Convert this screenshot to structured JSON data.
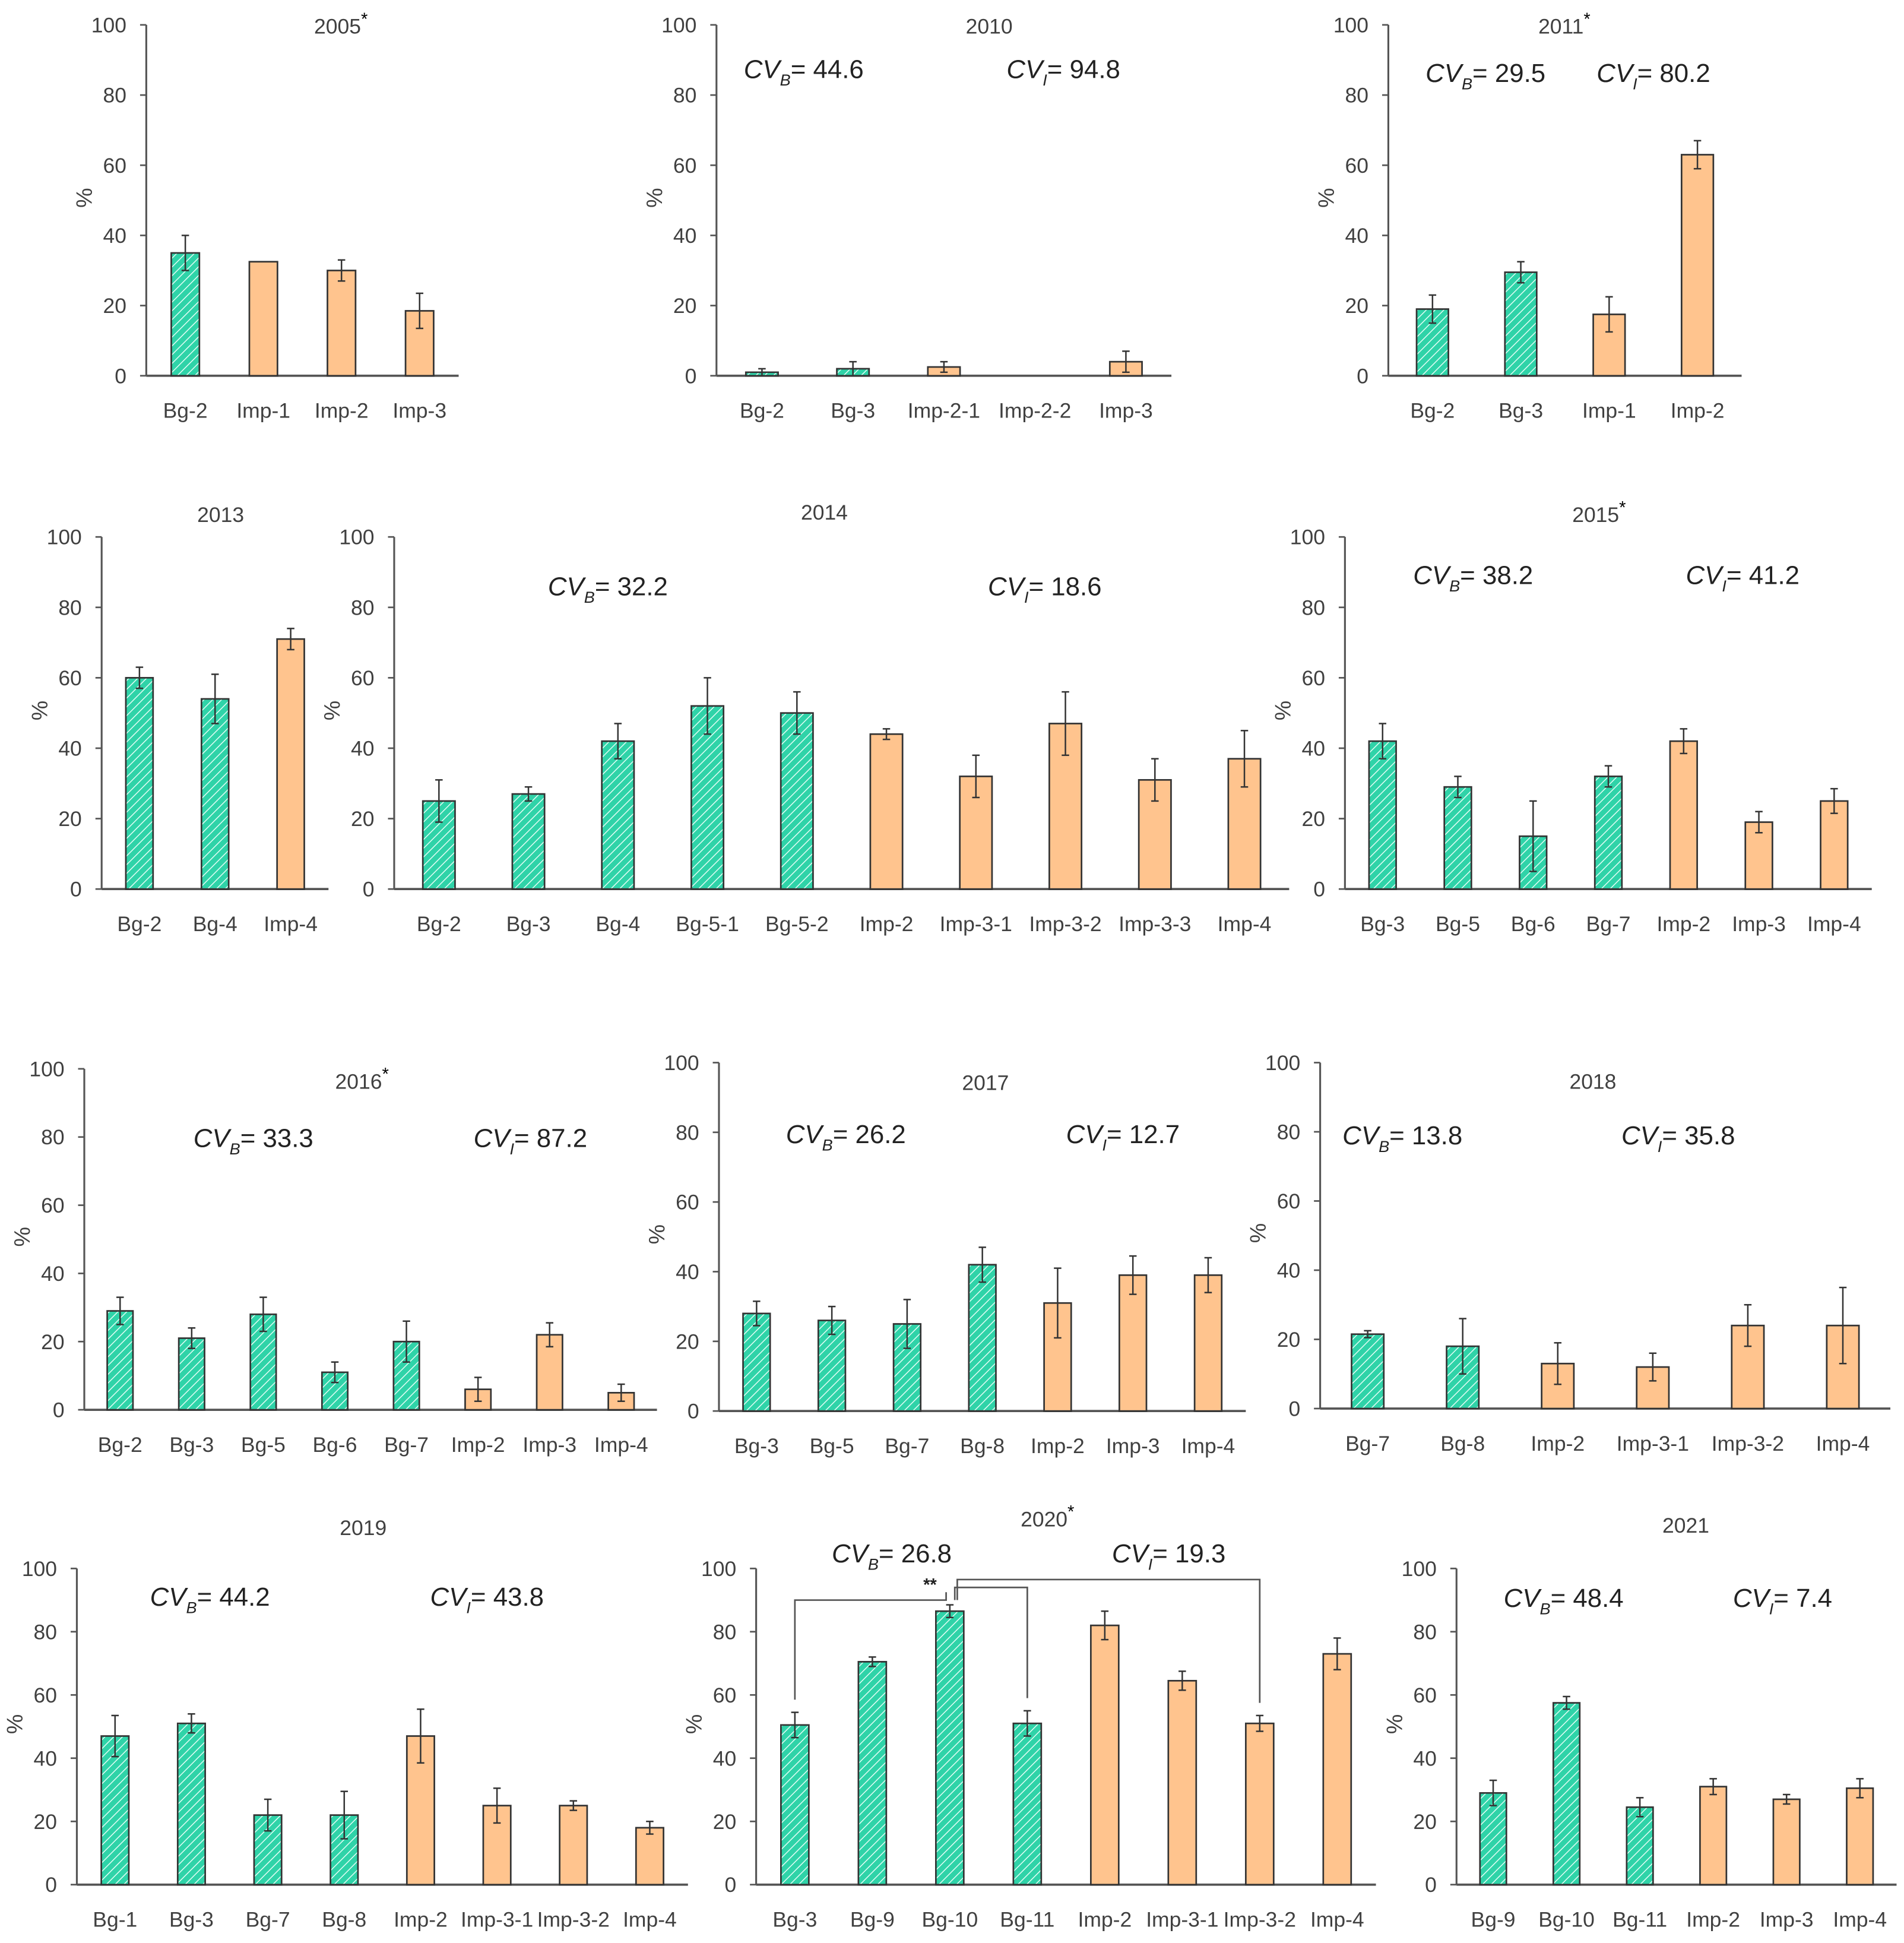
{
  "common": {
    "ylabel": "%",
    "yticks": [
      0,
      20,
      40,
      60,
      80,
      100
    ],
    "cv_label": "CV",
    "sub_b": "B",
    "sub_i": "I",
    "star": "*",
    "sig_label": "**",
    "colors": {
      "background_group": "#2fd3a8",
      "introduced_group": "#ffc48e",
      "outline": "#333333"
    }
  },
  "chart_data": [
    {
      "type": "bar",
      "title": "2005",
      "star": true,
      "ylim": [
        0,
        100
      ],
      "cv_b": null,
      "cv_i": null,
      "categories": [
        "Bg-2",
        "Imp-1",
        "Imp-2",
        "Imp-3"
      ],
      "values": [
        35,
        32.5,
        30,
        18.5
      ],
      "errors": [
        5,
        0,
        3,
        5
      ],
      "groups": [
        "B",
        "I",
        "I",
        "I"
      ]
    },
    {
      "type": "bar",
      "title": "2010",
      "star": false,
      "ylim": [
        0,
        100
      ],
      "cv_b": "= 44.6",
      "cv_i": "= 94.8",
      "categories": [
        "Bg-2",
        "Bg-3",
        "Imp-2-1",
        "Imp-2-2",
        "Imp-3"
      ],
      "values": [
        1,
        2,
        2.5,
        0,
        4
      ],
      "errors": [
        1,
        2,
        1.5,
        0,
        3
      ],
      "groups": [
        "B",
        "B",
        "I",
        "I",
        "I"
      ]
    },
    {
      "type": "bar",
      "title": "2011",
      "star": true,
      "ylim": [
        0,
        100
      ],
      "cv_b": "= 29.5",
      "cv_i": "= 80.2",
      "categories": [
        "Bg-2",
        "Bg-3",
        "Imp-1",
        "Imp-2"
      ],
      "values": [
        19,
        29.5,
        17.5,
        63
      ],
      "errors": [
        4,
        3,
        5,
        4
      ],
      "groups": [
        "B",
        "B",
        "I",
        "I"
      ]
    },
    {
      "type": "bar",
      "title": "2013",
      "star": false,
      "ylim": [
        0,
        100
      ],
      "cv_b": null,
      "cv_i": null,
      "categories": [
        "Bg-2",
        "Bg-4",
        "Imp-4"
      ],
      "values": [
        60,
        54,
        71
      ],
      "errors": [
        3,
        7,
        3
      ],
      "groups": [
        "B",
        "B",
        "I"
      ]
    },
    {
      "type": "bar",
      "title": "2014",
      "star": false,
      "ylim": [
        0,
        100
      ],
      "cv_b": "= 32.2",
      "cv_i": "= 18.6",
      "categories": [
        "Bg-2",
        "Bg-3",
        "Bg-4",
        "Bg-5-1",
        "Bg-5-2",
        "Imp-2",
        "Imp-3-1",
        "Imp-3-2",
        "Imp-3-3",
        "Imp-4"
      ],
      "values": [
        25,
        27,
        42,
        52,
        50,
        44,
        32,
        47,
        31,
        37
      ],
      "errors": [
        6,
        2,
        5,
        8,
        6,
        1.5,
        6,
        9,
        6,
        8
      ],
      "groups": [
        "B",
        "B",
        "B",
        "B",
        "B",
        "I",
        "I",
        "I",
        "I",
        "I"
      ]
    },
    {
      "type": "bar",
      "title": "2015",
      "star": true,
      "ylim": [
        0,
        100
      ],
      "cv_b": "= 38.2",
      "cv_i": "= 41.2",
      "categories": [
        "Bg-3",
        "Bg-5",
        "Bg-6",
        "Bg-7",
        "Imp-2",
        "Imp-3",
        "Imp-4"
      ],
      "values": [
        42,
        29,
        15,
        32,
        42,
        19,
        25
      ],
      "errors": [
        5,
        3,
        10,
        3,
        3.5,
        3,
        3.5
      ],
      "groups": [
        "B",
        "B",
        "B",
        "B",
        "I",
        "I",
        "I"
      ]
    },
    {
      "type": "bar",
      "title": "2016",
      "star": true,
      "ylim": [
        0,
        100
      ],
      "cv_b": "= 33.3",
      "cv_i": "= 87.2",
      "categories": [
        "Bg-2",
        "Bg-3",
        "Bg-5",
        "Bg-6",
        "Bg-7",
        "Imp-2",
        "Imp-3",
        "Imp-4"
      ],
      "values": [
        29,
        21,
        28,
        11,
        20,
        6,
        22,
        5
      ],
      "errors": [
        4,
        3,
        5,
        3,
        6,
        3.5,
        3.5,
        2.5
      ],
      "groups": [
        "B",
        "B",
        "B",
        "B",
        "B",
        "I",
        "I",
        "I"
      ]
    },
    {
      "type": "bar",
      "title": "2017",
      "star": false,
      "ylim": [
        0,
        100
      ],
      "cv_b": "= 26.2",
      "cv_i": "= 12.7",
      "categories": [
        "Bg-3",
        "Bg-5",
        "Bg-7",
        "Bg-8",
        "Imp-2",
        "Imp-3",
        "Imp-4"
      ],
      "values": [
        28,
        26,
        25,
        42,
        31,
        39,
        39
      ],
      "errors": [
        3.5,
        4,
        7,
        5,
        10,
        5.5,
        5
      ],
      "groups": [
        "B",
        "B",
        "B",
        "B",
        "I",
        "I",
        "I"
      ]
    },
    {
      "type": "bar",
      "title": "2018",
      "star": false,
      "ylim": [
        0,
        100
      ],
      "cv_b": "= 13.8",
      "cv_i": "= 35.8",
      "categories": [
        "Bg-7",
        "Bg-8",
        "Imp-2",
        "Imp-3-1",
        "Imp-3-2",
        "Imp-4"
      ],
      "values": [
        21.5,
        18,
        13,
        12,
        24,
        24
      ],
      "errors": [
        1,
        8,
        6,
        4,
        6,
        11
      ],
      "groups": [
        "B",
        "B",
        "I",
        "I",
        "I",
        "I"
      ]
    },
    {
      "type": "bar",
      "title": "2019",
      "star": false,
      "ylim": [
        0,
        100
      ],
      "cv_b": "= 44.2",
      "cv_i": "= 43.8",
      "categories": [
        "Bg-1",
        "Bg-3",
        "Bg-7",
        "Bg-8",
        "Imp-2",
        "Imp-3-1",
        "Imp-3-2",
        "Imp-4"
      ],
      "values": [
        47,
        51,
        22,
        22,
        47,
        25,
        25,
        18
      ],
      "errors": [
        6.5,
        3,
        5,
        7.5,
        8.5,
        5.5,
        1.5,
        2
      ],
      "groups": [
        "B",
        "B",
        "B",
        "B",
        "I",
        "I",
        "I",
        "I"
      ]
    },
    {
      "type": "bar",
      "title": "2020",
      "star": true,
      "ylim": [
        0,
        100
      ],
      "cv_b": "= 26.8",
      "cv_i": "= 19.3",
      "categories": [
        "Bg-3",
        "Bg-9",
        "Bg-10",
        "Bg-11",
        "Imp-2",
        "Imp-3-1",
        "Imp-3-2",
        "Imp-4"
      ],
      "values": [
        50.5,
        70.5,
        86.5,
        51,
        82,
        64.5,
        51,
        73
      ],
      "errors": [
        4,
        1.5,
        2,
        4,
        4.5,
        3,
        2.5,
        5
      ],
      "groups": [
        "B",
        "B",
        "B",
        "B",
        "I",
        "I",
        "I",
        "I"
      ],
      "comparisons": [
        {
          "from": "Bg-3",
          "to": "Bg-10"
        },
        {
          "from": "Bg-10",
          "to": "Bg-11"
        },
        {
          "from": "Bg-10",
          "to": "Imp-3-2"
        }
      ]
    },
    {
      "type": "bar",
      "title": "2021",
      "star": false,
      "ylim": [
        0,
        100
      ],
      "cv_b": "= 48.4",
      "cv_i": "= 7.4",
      "categories": [
        "Bg-9",
        "Bg-10",
        "Bg-11",
        "Imp-2",
        "Imp-3",
        "Imp-4"
      ],
      "values": [
        29,
        57.5,
        24.5,
        31,
        27,
        30.5
      ],
      "errors": [
        4,
        2,
        3,
        2.5,
        1.5,
        3
      ],
      "groups": [
        "B",
        "B",
        "B",
        "I",
        "I",
        "I"
      ]
    }
  ]
}
